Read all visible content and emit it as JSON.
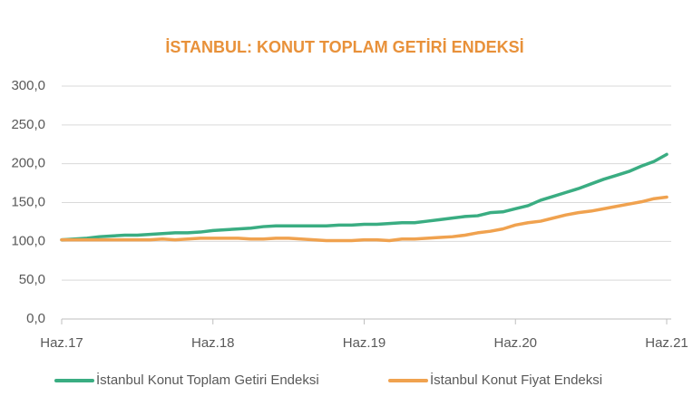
{
  "chart_data": {
    "type": "line",
    "title": "İSTANBUL: KONUT TOPLAM GETİRİ ENDEKSİ",
    "title_color": "#e8913a",
    "categories": [
      "Haz.17",
      null,
      null,
      null,
      null,
      null,
      null,
      null,
      null,
      null,
      null,
      null,
      "Haz.18",
      null,
      null,
      null,
      null,
      null,
      null,
      null,
      null,
      null,
      null,
      null,
      "Haz.19",
      null,
      null,
      null,
      null,
      null,
      null,
      null,
      null,
      null,
      null,
      null,
      "Haz.20",
      null,
      null,
      null,
      null,
      null,
      null,
      null,
      null,
      null,
      null,
      null,
      "Haz.21"
    ],
    "series": [
      {
        "name": "İstanbul Konut Toplam Getiri Endeksi",
        "color": "#3aad82",
        "values": [
          102,
          103,
          104,
          106,
          107,
          108,
          108,
          109,
          110,
          111,
          111,
          112,
          114,
          115,
          116,
          117,
          119,
          120,
          120,
          120,
          120,
          120,
          121,
          121,
          122,
          122,
          123,
          124,
          124,
          126,
          128,
          130,
          132,
          133,
          137,
          138,
          142,
          146,
          153,
          158,
          163,
          168,
          174,
          180,
          185,
          190,
          197,
          203,
          212
        ]
      },
      {
        "name": "İstanbul Konut Fiyat Endeksi",
        "color": "#f0a24f",
        "values": [
          102,
          102,
          102,
          102,
          102,
          102,
          102,
          102,
          103,
          102,
          103,
          104,
          104,
          104,
          104,
          103,
          103,
          104,
          104,
          103,
          102,
          101,
          101,
          101,
          102,
          102,
          101,
          103,
          103,
          104,
          105,
          106,
          108,
          111,
          113,
          116,
          121,
          124,
          126,
          130,
          134,
          137,
          139,
          142,
          145,
          148,
          151,
          155,
          157
        ]
      }
    ],
    "ylim": [
      0,
      300
    ],
    "yticks": [
      {
        "value": 0,
        "label": "0,0"
      },
      {
        "value": 50,
        "label": "50,0"
      },
      {
        "value": 100,
        "label": "100,0"
      },
      {
        "value": 150,
        "label": "150,0"
      },
      {
        "value": 200,
        "label": "200,0"
      },
      {
        "value": 250,
        "label": "250,0"
      },
      {
        "value": 300,
        "label": "300,0"
      }
    ],
    "grid": true
  }
}
